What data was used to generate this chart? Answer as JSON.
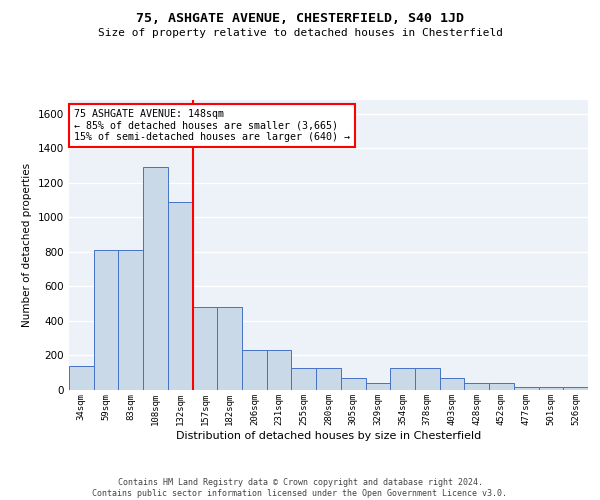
{
  "title1": "75, ASHGATE AVENUE, CHESTERFIELD, S40 1JD",
  "title2": "Size of property relative to detached houses in Chesterfield",
  "xlabel": "Distribution of detached houses by size in Chesterfield",
  "ylabel": "Number of detached properties",
  "categories": [
    "34sqm",
    "59sqm",
    "83sqm",
    "108sqm",
    "132sqm",
    "157sqm",
    "182sqm",
    "206sqm",
    "231sqm",
    "255sqm",
    "280sqm",
    "305sqm",
    "329sqm",
    "354sqm",
    "378sqm",
    "403sqm",
    "428sqm",
    "452sqm",
    "477sqm",
    "501sqm",
    "526sqm"
  ],
  "values": [
    140,
    810,
    810,
    1290,
    1090,
    480,
    480,
    230,
    230,
    130,
    130,
    70,
    40,
    130,
    130,
    70,
    40,
    40,
    20,
    20,
    20
  ],
  "bar_color": "#c9d9e8",
  "bar_edge_color": "#4472c4",
  "vline_x_index": 5.0,
  "vline_color": "red",
  "annotation_text": "75 ASHGATE AVENUE: 148sqm\n← 85% of detached houses are smaller (3,665)\n15% of semi-detached houses are larger (640) →",
  "annotation_box_color": "white",
  "annotation_box_edge": "red",
  "footer": "Contains HM Land Registry data © Crown copyright and database right 2024.\nContains public sector information licensed under the Open Government Licence v3.0.",
  "ylim": [
    0,
    1680
  ],
  "yticks": [
    0,
    200,
    400,
    600,
    800,
    1000,
    1200,
    1400,
    1600
  ],
  "background_color": "#ecf2f8",
  "grid_color": "white"
}
